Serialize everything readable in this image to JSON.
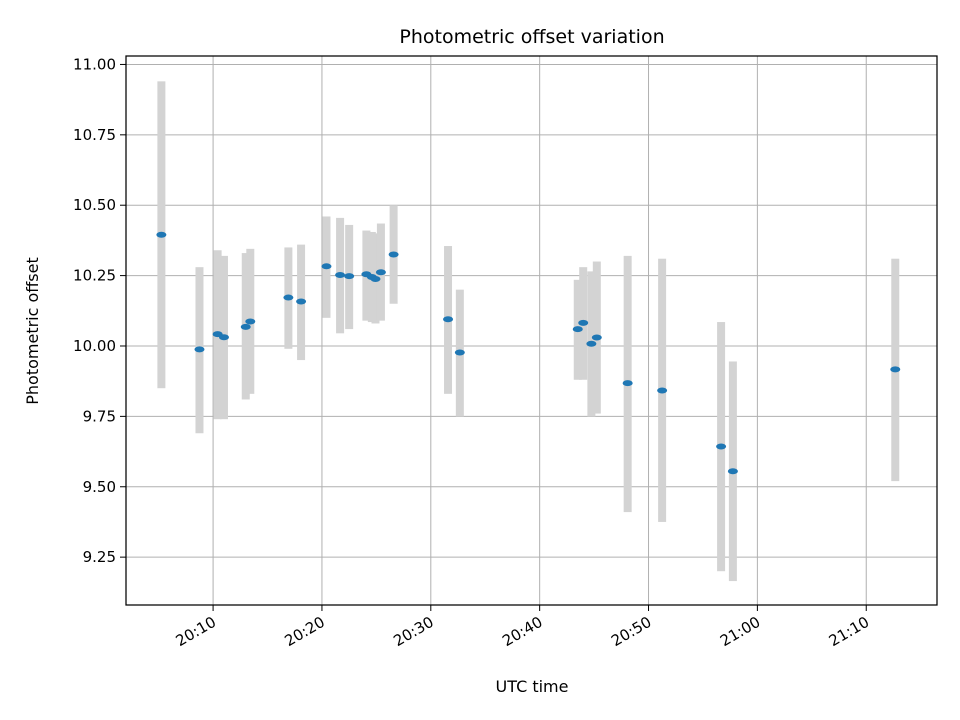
{
  "chart_data": {
    "type": "scatter",
    "title": "Photometric offset variation",
    "xlabel": "UTC time",
    "ylabel": "Photometric offset",
    "grid": true,
    "x_unit": "UTC time of day",
    "xlim": [
      "20:02:00",
      "21:16:30"
    ],
    "ylim": [
      9.08,
      11.03
    ],
    "x_ticks": [
      "20:10",
      "20:20",
      "20:30",
      "20:40",
      "20:50",
      "21:00",
      "21:10"
    ],
    "y_ticks": [
      "9.25",
      "9.50",
      "9.75",
      "10.00",
      "10.25",
      "10.50",
      "10.75",
      "11.00"
    ],
    "series": [
      {
        "marker_color": "#1f77b4",
        "errorbar_color": "#d3d3d3",
        "points": [
          {
            "x": "20:05:15",
            "y": 10.395,
            "lo": 9.85,
            "hi": 10.94
          },
          {
            "x": "20:08:45",
            "y": 9.988,
            "lo": 9.69,
            "hi": 10.28
          },
          {
            "x": "20:10:25",
            "y": 10.042,
            "lo": 9.74,
            "hi": 10.34
          },
          {
            "x": "20:11:00",
            "y": 10.031,
            "lo": 9.74,
            "hi": 10.32
          },
          {
            "x": "20:13:00",
            "y": 10.068,
            "lo": 9.81,
            "hi": 10.33
          },
          {
            "x": "20:13:25",
            "y": 10.087,
            "lo": 9.83,
            "hi": 10.345
          },
          {
            "x": "20:16:55",
            "y": 10.172,
            "lo": 9.99,
            "hi": 10.35
          },
          {
            "x": "20:18:05",
            "y": 10.158,
            "lo": 9.95,
            "hi": 10.36
          },
          {
            "x": "20:20:25",
            "y": 10.283,
            "lo": 10.1,
            "hi": 10.46
          },
          {
            "x": "20:21:40",
            "y": 10.252,
            "lo": 10.045,
            "hi": 10.455
          },
          {
            "x": "20:22:30",
            "y": 10.248,
            "lo": 10.06,
            "hi": 10.43
          },
          {
            "x": "20:24:05",
            "y": 10.255,
            "lo": 10.09,
            "hi": 10.41
          },
          {
            "x": "20:24:35",
            "y": 10.245,
            "lo": 10.085,
            "hi": 10.405
          },
          {
            "x": "20:24:55",
            "y": 10.238,
            "lo": 10.08,
            "hi": 10.4
          },
          {
            "x": "20:25:25",
            "y": 10.262,
            "lo": 10.09,
            "hi": 10.435
          },
          {
            "x": "20:26:35",
            "y": 10.325,
            "lo": 10.15,
            "hi": 10.5
          },
          {
            "x": "20:31:35",
            "y": 10.095,
            "lo": 9.83,
            "hi": 10.355
          },
          {
            "x": "20:32:40",
            "y": 9.977,
            "lo": 9.75,
            "hi": 10.2
          },
          {
            "x": "20:43:30",
            "y": 10.06,
            "lo": 9.88,
            "hi": 10.235
          },
          {
            "x": "20:44:00",
            "y": 10.082,
            "lo": 9.88,
            "hi": 10.28
          },
          {
            "x": "20:44:45",
            "y": 10.008,
            "lo": 9.75,
            "hi": 10.265
          },
          {
            "x": "20:45:15",
            "y": 10.03,
            "lo": 9.76,
            "hi": 10.3
          },
          {
            "x": "20:48:05",
            "y": 9.868,
            "lo": 9.41,
            "hi": 10.32
          },
          {
            "x": "20:51:15",
            "y": 9.842,
            "lo": 9.375,
            "hi": 10.31
          },
          {
            "x": "20:56:40",
            "y": 9.643,
            "lo": 9.2,
            "hi": 10.085
          },
          {
            "x": "20:57:45",
            "y": 9.555,
            "lo": 9.165,
            "hi": 9.945
          },
          {
            "x": "21:12:40",
            "y": 9.917,
            "lo": 9.52,
            "hi": 10.31
          }
        ]
      }
    ]
  }
}
